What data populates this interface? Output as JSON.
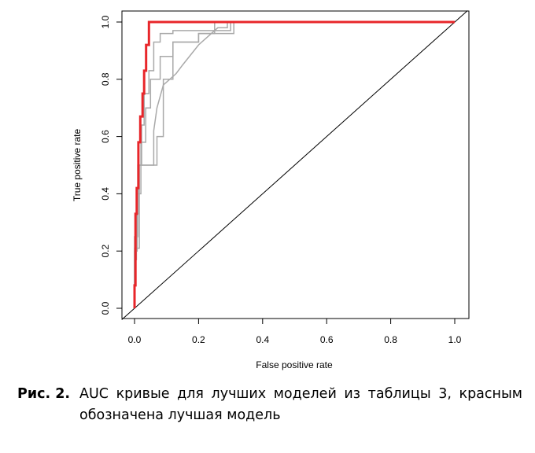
{
  "chart_data": {
    "type": "line",
    "xlabel": "False positive rate",
    "ylabel": "True positive rate",
    "xlim": [
      0,
      1
    ],
    "ylim": [
      0,
      1
    ],
    "x_ticks": [
      "0.0",
      "0.2",
      "0.4",
      "0.6",
      "0.8",
      "1.0"
    ],
    "y_ticks": [
      "0.0",
      "0.2",
      "0.4",
      "0.6",
      "0.8",
      "1.0"
    ],
    "grid": false,
    "legend": "none",
    "colors": {
      "best": "#e8262a",
      "other": "#a9a9a9",
      "diagonal": "#000000"
    },
    "diagonal": {
      "x": [
        0,
        1
      ],
      "y": [
        0,
        1
      ]
    },
    "series": [
      {
        "highlight": true,
        "x": [
          0,
          0,
          0.003,
          0.003,
          0.007,
          0.007,
          0.012,
          0.012,
          0.018,
          0.018,
          0.025,
          0.025,
          0.03,
          0.03,
          0.036,
          0.036,
          0.045,
          0.045,
          1.0
        ],
        "y": [
          0,
          0.08,
          0.08,
          0.33,
          0.33,
          0.42,
          0.42,
          0.58,
          0.58,
          0.67,
          0.67,
          0.75,
          0.75,
          0.83,
          0.83,
          0.92,
          0.92,
          1.0,
          1.0
        ]
      },
      {
        "highlight": false,
        "x": [
          0,
          0,
          0.006,
          0.006,
          0.014,
          0.014,
          0.022,
          0.022,
          0.03,
          0.03,
          0.045,
          0.045,
          0.06,
          0.06,
          0.08,
          0.08,
          0.12,
          0.12,
          0.3,
          0.3,
          1.0
        ],
        "y": [
          0,
          0.17,
          0.17,
          0.33,
          0.33,
          0.5,
          0.5,
          0.64,
          0.64,
          0.75,
          0.75,
          0.83,
          0.83,
          0.93,
          0.93,
          0.96,
          0.96,
          0.97,
          0.97,
          1.0,
          1.0
        ]
      },
      {
        "highlight": false,
        "x": [
          0,
          0,
          0.008,
          0.008,
          0.02,
          0.02,
          0.035,
          0.035,
          0.05,
          0.05,
          0.08,
          0.08,
          0.12,
          0.12,
          0.2,
          0.2,
          0.31,
          0.31,
          1.0
        ],
        "y": [
          0,
          0.2,
          0.2,
          0.4,
          0.4,
          0.58,
          0.58,
          0.7,
          0.7,
          0.8,
          0.8,
          0.88,
          0.88,
          0.93,
          0.93,
          0.96,
          0.96,
          1.0,
          1.0
        ]
      },
      {
        "highlight": false,
        "x": [
          0,
          0,
          0.01,
          0.01,
          0.03,
          0.03,
          0.06,
          0.06,
          0.07,
          0.09,
          0.11,
          0.13,
          0.15,
          0.2,
          0.23,
          0.26,
          0.29,
          0.29,
          1.0
        ],
        "y": [
          0,
          0.25,
          0.25,
          0.5,
          0.5,
          0.5,
          0.5,
          0.62,
          0.7,
          0.78,
          0.8,
          0.82,
          0.85,
          0.92,
          0.95,
          0.98,
          0.98,
          1.0,
          1.0
        ]
      },
      {
        "highlight": false,
        "x": [
          0,
          0,
          0.015,
          0.015,
          0.04,
          0.04,
          0.07,
          0.07,
          0.09,
          0.09,
          0.12,
          0.12,
          0.16,
          0.16,
          0.2,
          0.2,
          0.25,
          0.25,
          1.0
        ],
        "y": [
          0,
          0.21,
          0.21,
          0.5,
          0.5,
          0.5,
          0.5,
          0.6,
          0.6,
          0.8,
          0.8,
          0.93,
          0.93,
          0.93,
          0.93,
          0.96,
          0.96,
          1.0,
          1.0
        ]
      }
    ]
  },
  "caption": {
    "label": "Рис. 2.",
    "text": "AUC кривые для лучших моделей из таблицы 3, красным обозначена лучшая модель"
  }
}
